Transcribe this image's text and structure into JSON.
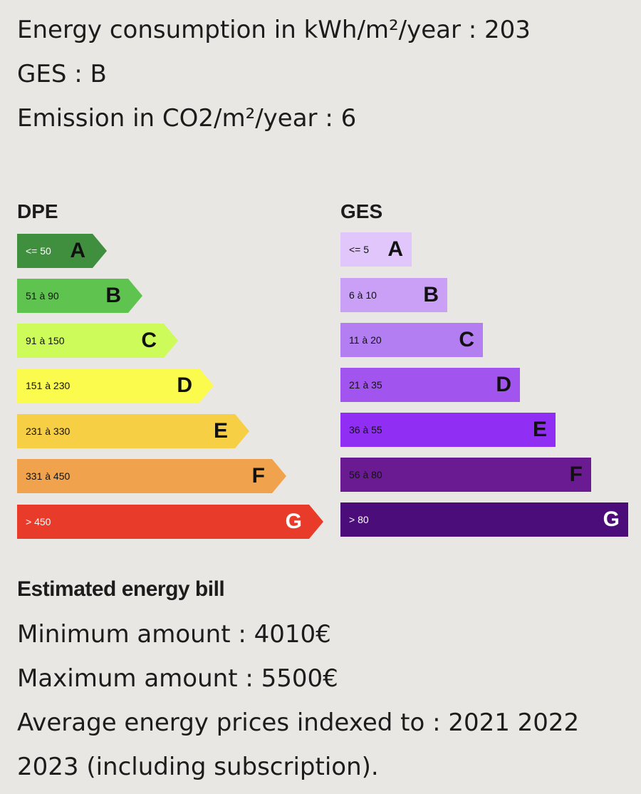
{
  "summary": {
    "energy_consumption": "Energy consumption in kWh/m²/year : 203",
    "ges": "GES : B",
    "emission": "Emission in CO2/m²/year : 6"
  },
  "dpe": {
    "title": "DPE",
    "classes": [
      {
        "range": "<= 50",
        "letter": "A",
        "color": "#3f8f3e"
      },
      {
        "range": "51 à 90",
        "letter": "B",
        "color": "#5fc44f"
      },
      {
        "range": "91 à 150",
        "letter": "C",
        "color": "#cdfb5a"
      },
      {
        "range": "151 à 230",
        "letter": "D",
        "color": "#fbfb4e"
      },
      {
        "range": "231 à 330",
        "letter": "E",
        "color": "#f6cf45"
      },
      {
        "range": "331 à 450",
        "letter": "F",
        "color": "#f1a24c"
      },
      {
        "range": "> 450",
        "letter": "G",
        "color": "#e93b2a"
      }
    ]
  },
  "ges_scale": {
    "title": "GES",
    "classes": [
      {
        "range": "<= 5",
        "letter": "A",
        "color": "#e0c6fa"
      },
      {
        "range": "6 à 10",
        "letter": "B",
        "color": "#c9a0f6"
      },
      {
        "range": "11 à 20",
        "letter": "C",
        "color": "#b27ef2"
      },
      {
        "range": "21 à 35",
        "letter": "D",
        "color": "#a254ee"
      },
      {
        "range": "36 à 55",
        "letter": "E",
        "color": "#902ef4"
      },
      {
        "range": "56 à 80",
        "letter": "F",
        "color": "#6a1b92"
      },
      {
        "range": "> 80",
        "letter": "G",
        "color": "#4b0d79"
      }
    ]
  },
  "bill": {
    "title": "Estimated energy bill",
    "minimum": "Minimum amount : 4010€",
    "maximum": "Maximum amount : 5500€",
    "prices_line1": "Average energy prices indexed to : 2021 2022",
    "prices_line2": "2023 (including subscription)."
  }
}
